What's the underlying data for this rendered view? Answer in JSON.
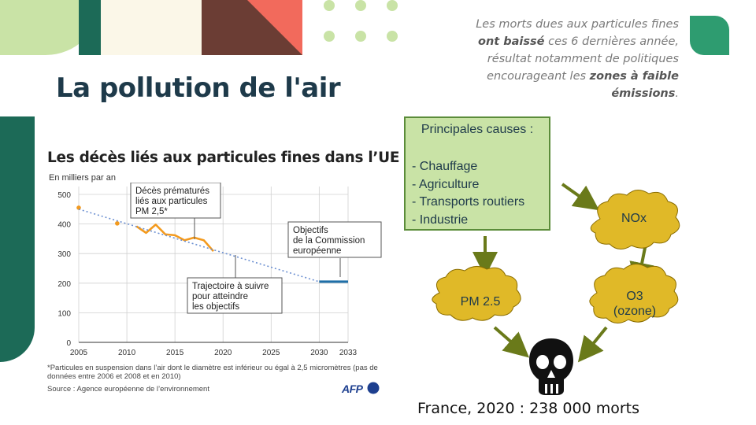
{
  "slide": {
    "title": "La pollution de l'air",
    "quote": {
      "p1": "Les morts dues aux particules fines",
      "p2_bold": "ont baissé",
      "p2_rest": " ces 6 dernières année,",
      "p3": "résultat notamment de politiques",
      "p4": "encourageant les ",
      "p4_bold": "zones à faible",
      "p5_bold": "émissions",
      "p5_rest": "."
    },
    "colors": {
      "title": "#1e3a4a",
      "accent_green": "#c9e3a6",
      "teal": "#1c6a57",
      "coral": "#f26a5c",
      "cloud": "#e0b928",
      "arrow": "#6a7a1a"
    }
  },
  "chart": {
    "title": "Les décès liés aux particules fines dans l’UE",
    "unit": "En milliers par an",
    "callout_deaths": [
      "Décès prématurés",
      "liés aux particules",
      "PM 2,5*"
    ],
    "callout_trajectory": [
      "Trajectoire à suivre",
      "pour atteindre",
      "les objectifs"
    ],
    "callout_objectives": [
      "Objectifs",
      "de la Commission",
      "européenne"
    ],
    "footnote": "*Particules en suspension dans l’air dont le diamètre est inférieur ou égal à 2,5 micromètres (pas de données entre 2006 et 2008 et en 2010)",
    "source": "Source : Agence européenne de l’environnement",
    "logo": "AFP",
    "chart_data": {
      "type": "line",
      "x_ticks": [
        2005,
        2010,
        2015,
        2020,
        2025,
        2030,
        2033
      ],
      "y_ticks": [
        0,
        100,
        200,
        300,
        400,
        500
      ],
      "xlim": [
        2005,
        2033
      ],
      "ylim": [
        0,
        500
      ],
      "grid": true,
      "series": [
        {
          "name": "Décès prématurés liés aux particules PM 2,5*",
          "color": "#f39a1e",
          "style": "line",
          "x": [
            2009,
            2011,
            2012,
            2013,
            2014,
            2015,
            2016,
            2017,
            2018,
            2019
          ],
          "y": [
            402,
            392,
            370,
            398,
            365,
            362,
            345,
            354,
            345,
            308
          ],
          "isolated_points": [
            [
              2005,
              455
            ],
            [
              2009,
              402
            ]
          ]
        },
        {
          "name": "Trajectoire à suivre pour atteindre les objectifs",
          "color": "#6b8fd1",
          "style": "dotted",
          "x": [
            2005,
            2030
          ],
          "y": [
            450,
            205
          ]
        },
        {
          "name": "Objectifs de la Commission européenne",
          "color": "#1f6fa8",
          "style": "solid",
          "x": [
            2030,
            2033
          ],
          "y": [
            205,
            205
          ]
        }
      ]
    }
  },
  "causes": {
    "title": "Principales causes :",
    "items": [
      "- Chauffage",
      "- Agriculture",
      "- Transports routiers",
      "- Industrie"
    ]
  },
  "clouds": {
    "nox": "NOx",
    "o3_l1": "O3",
    "o3_l2": "(ozone)",
    "pm": "PM 2.5"
  },
  "skull_icon": "skull-icon",
  "final": "France, 2020 : 238 000 morts"
}
